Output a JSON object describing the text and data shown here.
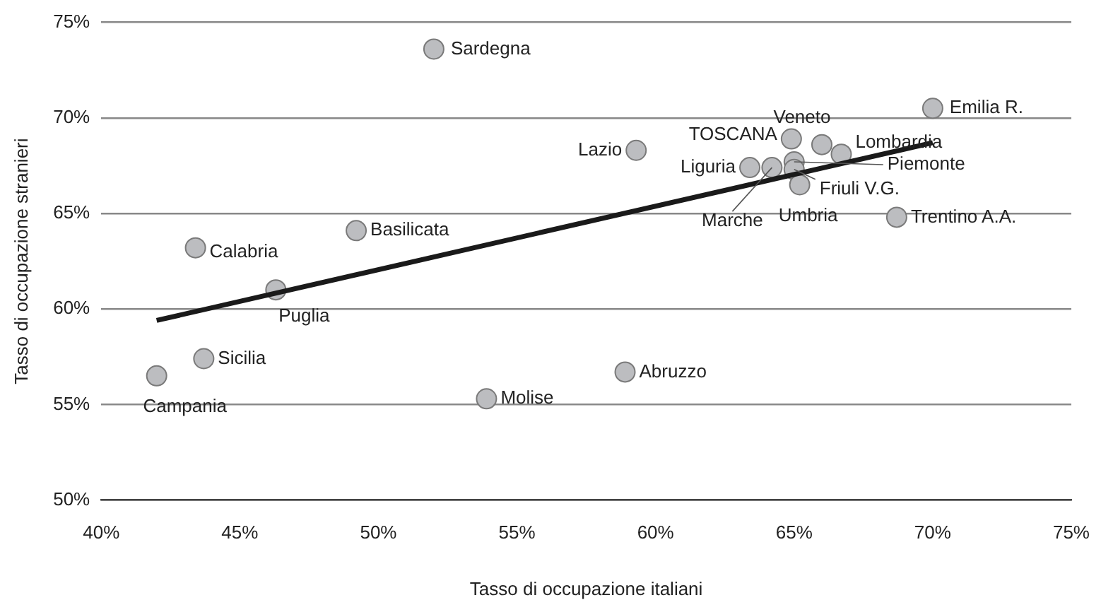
{
  "chart_data": {
    "type": "scatter",
    "xlabel": "Tasso di occupazione italiani",
    "ylabel": "Tasso di occupazione stranieri",
    "xlim": [
      40,
      75
    ],
    "xticks": [
      {
        "value": 40,
        "label": "40%"
      },
      {
        "value": 45,
        "label": "45%"
      },
      {
        "value": 50,
        "label": "50%"
      },
      {
        "value": 55,
        "label": "55%"
      },
      {
        "value": 60,
        "label": "60%"
      },
      {
        "value": 65,
        "label": "65%"
      },
      {
        "value": 70,
        "label": "70%"
      },
      {
        "value": 75,
        "label": "75%"
      }
    ],
    "ylim": [
      50,
      75
    ],
    "yticks": [
      {
        "value": 50,
        "label": "50%"
      },
      {
        "value": 55,
        "label": "55%"
      },
      {
        "value": 60,
        "label": "60%"
      },
      {
        "value": 65,
        "label": "65%"
      },
      {
        "value": 70,
        "label": "70%"
      },
      {
        "value": 75,
        "label": "75%"
      }
    ],
    "grid": "y",
    "legend": false,
    "marker": "circle",
    "series": [
      {
        "color": "#bcbdc0",
        "x": [
          52.0,
          70.0,
          66.0,
          64.9,
          66.7,
          59.3,
          63.4,
          64.2,
          65.0,
          65.0,
          65.2,
          68.7,
          49.2,
          43.4,
          46.3,
          43.7,
          42.0,
          53.9,
          58.9
        ],
        "values": [
          73.6,
          70.5,
          68.6,
          68.9,
          68.1,
          68.3,
          67.4,
          67.4,
          67.7,
          67.3,
          66.5,
          64.8,
          64.1,
          63.2,
          61.0,
          57.4,
          56.5,
          55.3,
          56.7
        ]
      },
      {
        "type": "line",
        "color": "#1a1a1a",
        "line_style": "solid",
        "marker": "none",
        "x": [
          42.0,
          70.0
        ],
        "values": [
          59.4,
          68.7
        ]
      }
    ],
    "annotations": [
      {
        "text": "Sardegna",
        "x": 52.0,
        "y": 73.6
      },
      {
        "text": "Emilia R.",
        "x": 70.0,
        "y": 70.5
      },
      {
        "text": "Veneto",
        "x": 66.0,
        "y": 68.6
      },
      {
        "text": "TOSCANA",
        "x": 64.9,
        "y": 68.9
      },
      {
        "text": "Lombardia",
        "x": 66.7,
        "y": 68.1
      },
      {
        "text": "Lazio",
        "x": 59.3,
        "y": 68.3
      },
      {
        "text": "Liguria",
        "x": 63.4,
        "y": 67.4
      },
      {
        "text": "Marche",
        "x": 64.2,
        "y": 67.4
      },
      {
        "text": "Piemonte",
        "x": 65.0,
        "y": 67.7
      },
      {
        "text": "Friuli V.G.",
        "x": 65.0,
        "y": 67.3
      },
      {
        "text": "Umbria",
        "x": 65.2,
        "y": 66.5
      },
      {
        "text": "Trentino A.A.",
        "x": 68.7,
        "y": 64.8
      },
      {
        "text": "Basilicata",
        "x": 49.2,
        "y": 64.1
      },
      {
        "text": "Calabria",
        "x": 43.4,
        "y": 63.2
      },
      {
        "text": "Puglia",
        "x": 46.3,
        "y": 61.0
      },
      {
        "text": "Sicilia",
        "x": 43.7,
        "y": 57.4
      },
      {
        "text": "Campania",
        "x": 42.0,
        "y": 56.5
      },
      {
        "text": "Molise",
        "x": 53.9,
        "y": 55.3
      },
      {
        "text": "Abruzzo",
        "x": 58.9,
        "y": 56.7
      }
    ]
  }
}
